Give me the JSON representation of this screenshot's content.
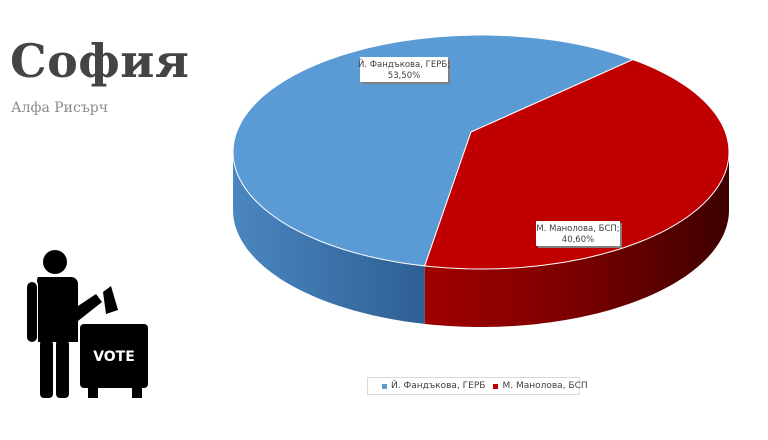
{
  "page": {
    "title": "София",
    "subtitle": "Алфа Рисърч",
    "vote_label": "VOTE"
  },
  "chart_data": {
    "type": "pie",
    "title": "",
    "slices": [
      {
        "name": "Й. Фандъкова, ГЕРБ",
        "label_line1": "Й. Фандъкова, ГЕРБ;",
        "label_line2": "53,50%",
        "value": 53.5,
        "color": "#5b9bd5"
      },
      {
        "name": "М. Манолова, БСП",
        "label_line1": "М. Манолова, БСП;",
        "label_line2": "40,60%",
        "value": 40.6,
        "color": "#c00000"
      }
    ],
    "legend": {
      "placement": "bottom"
    },
    "style": "3d"
  }
}
